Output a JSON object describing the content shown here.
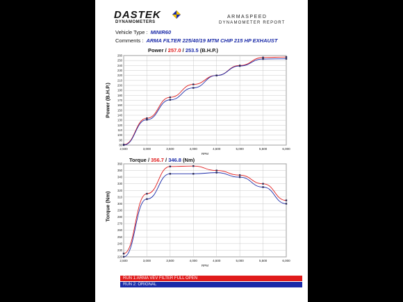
{
  "header": {
    "brand": "DASTEK",
    "brand_sub": "DYNAMOMETERS",
    "report_title": "ARMASPEED",
    "report_sub": "DYNAMOMETER REPORT"
  },
  "meta": {
    "vehicle_label": "Vehicle Type :",
    "vehicle_value": "MINIR60",
    "comments_label": "Comments :",
    "comments_value": "ARMA FILTER 225/40/19 MTM CHIP 215 HP EXHAUST"
  },
  "legend": {
    "run1": "RUN 1:ARMA VEV FILTER FULL OPEN",
    "run2": "RUN 2: ORIGNAL",
    "run1_color": "#e01b1b",
    "run2_color": "#1a2aa8"
  },
  "chart_data": [
    {
      "type": "line",
      "title_prefix": "Power /",
      "title_run1": "257.0",
      "title_sep": "/",
      "title_run2": "253.5",
      "title_unit": "(B.H.P.)",
      "ylabel": "Power (B.H.P.)",
      "xlabel": "RPM",
      "xlim": [
        2500,
        6000
      ],
      "ylim": [
        80,
        260
      ],
      "xticks": [
        "2,500",
        "3,000",
        "3,500",
        "4,000",
        "4,500",
        "5,000",
        "5,500",
        "6,000"
      ],
      "yticks": [
        "80",
        "90",
        "100",
        "110",
        "120",
        "130",
        "140",
        "150",
        "160",
        "170",
        "180",
        "190",
        "200",
        "210",
        "220",
        "230",
        "240",
        "250",
        "260"
      ],
      "grid": true,
      "series": [
        {
          "name": "RUN 1:ARMA VEV FILTER FULL OPEN",
          "color": "#e01b1b",
          "x": [
            2500,
            3000,
            3500,
            4000,
            4500,
            5000,
            5500,
            6000
          ],
          "y": [
            81,
            134,
            176,
            202,
            220,
            240,
            256,
            257
          ]
        },
        {
          "name": "RUN 2: ORIGNAL",
          "color": "#1a2aa8",
          "x": [
            2500,
            3000,
            3500,
            4000,
            4500,
            5000,
            5500,
            6000
          ],
          "y": [
            80,
            131,
            171,
            195,
            220,
            239,
            253,
            253.5
          ]
        }
      ]
    },
    {
      "type": "line",
      "title_prefix": "Torque /",
      "title_run1": "356.7",
      "title_sep": "/",
      "title_run2": "346.8",
      "title_unit": "(Nm)",
      "ylabel": "Torque (Nm)",
      "xlabel": "RPM",
      "xlim": [
        2500,
        6000
      ],
      "ylim": [
        220,
        360
      ],
      "xticks": [
        "2,500",
        "3,000",
        "3,500",
        "4,000",
        "4,500",
        "5,000",
        "5,500",
        "6,000"
      ],
      "yticks": [
        "220",
        "230",
        "240",
        "250",
        "260",
        "270",
        "280",
        "290",
        "300",
        "310",
        "320",
        "330",
        "340",
        "350",
        "360"
      ],
      "grid": true,
      "series": [
        {
          "name": "RUN 1:ARMA VEV FILTER FULL OPEN",
          "color": "#e01b1b",
          "x": [
            2500,
            3000,
            3500,
            4000,
            4500,
            5000,
            5500,
            6000
          ],
          "y": [
            225,
            315,
            356,
            356.7,
            350,
            343,
            330,
            305
          ]
        },
        {
          "name": "RUN 2: ORIGNAL",
          "color": "#1a2aa8",
          "x": [
            2500,
            3000,
            3500,
            4000,
            4500,
            5000,
            5500,
            6000
          ],
          "y": [
            220,
            307,
            345,
            345,
            346.8,
            340,
            325,
            300
          ]
        }
      ]
    }
  ]
}
